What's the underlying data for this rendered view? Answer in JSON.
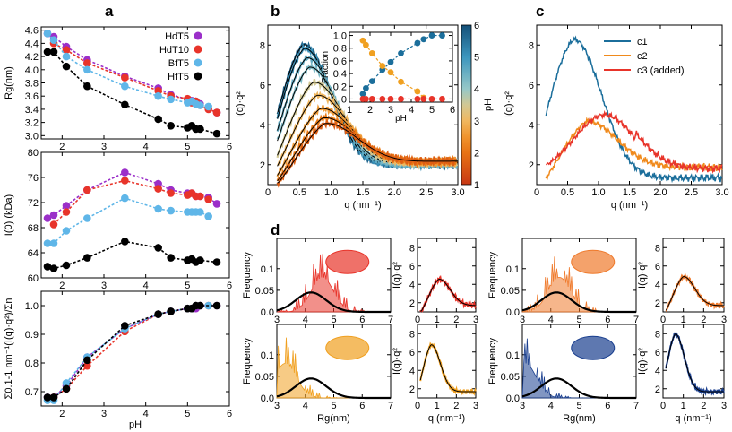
{
  "panel_letters": [
    "a",
    "b",
    "c",
    "d"
  ],
  "chart_data": [
    {
      "id": "a1",
      "type": "scatter",
      "title": "",
      "xlabel": "",
      "ylabel": "Rg(nm)",
      "xlim": [
        1.5,
        6
      ],
      "ylim": [
        2.95,
        4.65
      ],
      "xticks": [
        2,
        3,
        4,
        5,
        6
      ],
      "yticks": [
        3.0,
        3.2,
        3.4,
        3.6,
        3.8,
        4.0,
        4.2,
        4.4,
        4.6
      ],
      "legend": [
        "HdT5",
        "HdT10",
        "BfT5",
        "HfT5"
      ],
      "colors": [
        "#9b2fc9",
        "#e8342a",
        "#5fb6e8",
        "#000000"
      ],
      "series": [
        {
          "name": "HdT5",
          "color": "#9b2fc9",
          "x": [
            1.65,
            1.8,
            2.1,
            2.6,
            3.5,
            4.3,
            4.6,
            5.0,
            5.1,
            5.2,
            5.3,
            5.7
          ],
          "y": [
            4.55,
            4.5,
            4.35,
            4.15,
            3.9,
            3.72,
            3.62,
            3.55,
            3.53,
            3.52,
            3.48,
            3.35
          ]
        },
        {
          "name": "HdT10",
          "color": "#e8342a",
          "x": [
            1.8,
            2.1,
            2.6,
            3.5,
            4.3,
            4.6,
            5.0,
            5.1,
            5.2,
            5.3,
            5.5,
            5.7
          ],
          "y": [
            4.4,
            4.3,
            4.1,
            3.88,
            3.68,
            3.6,
            3.56,
            3.5,
            3.52,
            3.46,
            3.4,
            3.35
          ]
        },
        {
          "name": "BfT5",
          "color": "#5fb6e8",
          "x": [
            1.65,
            1.8,
            2.1,
            2.6,
            3.5,
            4.3,
            4.6,
            5.0,
            5.1,
            5.2,
            5.3,
            5.5
          ],
          "y": [
            4.55,
            4.45,
            4.2,
            4.0,
            3.75,
            3.6,
            3.55,
            3.5,
            3.52,
            3.48,
            3.46,
            3.44
          ]
        },
        {
          "name": "HfT5",
          "color": "#000000",
          "x": [
            1.65,
            1.8,
            2.1,
            2.6,
            3.5,
            4.3,
            4.6,
            5.0,
            5.1,
            5.2,
            5.3,
            5.7
          ],
          "y": [
            4.27,
            4.27,
            4.05,
            3.75,
            3.47,
            3.25,
            3.15,
            3.12,
            3.15,
            3.1,
            3.1,
            3.03
          ]
        }
      ]
    },
    {
      "id": "a2",
      "type": "scatter",
      "title": "",
      "xlabel": "",
      "ylabel": "I(0) (kDa)",
      "xlim": [
        1.5,
        6
      ],
      "ylim": [
        60,
        80
      ],
      "xticks": [
        2,
        3,
        4,
        5,
        6
      ],
      "yticks": [
        60,
        64,
        68,
        72,
        76,
        80
      ],
      "series": [
        {
          "name": "HdT5",
          "color": "#9b2fc9",
          "x": [
            1.65,
            1.8,
            2.1,
            2.6,
            3.5,
            4.3,
            4.6,
            5.0,
            5.1,
            5.2,
            5.3,
            5.5,
            5.7
          ],
          "y": [
            69.5,
            70.0,
            71.5,
            74.0,
            76.8,
            75.0,
            74.0,
            73.5,
            73.5,
            73.0,
            73.0,
            72.8,
            71.8
          ]
        },
        {
          "name": "HdT10",
          "color": "#e8342a",
          "x": [
            1.8,
            2.1,
            2.6,
            3.5,
            4.3,
            4.6,
            5.0,
            5.1,
            5.2,
            5.3,
            5.5
          ],
          "y": [
            68.5,
            70.5,
            74.0,
            75.5,
            74.2,
            73.5,
            73.2,
            73.5,
            73.0,
            73.0,
            72.5
          ]
        },
        {
          "name": "BfT5",
          "color": "#5fb6e8",
          "x": [
            1.65,
            1.8,
            2.1,
            2.6,
            3.5,
            4.3,
            4.6,
            5.0,
            5.1,
            5.2,
            5.3,
            5.5
          ],
          "y": [
            65.5,
            65.5,
            67.5,
            69.5,
            72.7,
            71.0,
            70.7,
            70.5,
            70.5,
            70.5,
            70.5,
            69.8
          ]
        },
        {
          "name": "HfT5",
          "color": "#000000",
          "x": [
            1.65,
            1.8,
            2.1,
            2.6,
            3.5,
            4.3,
            4.6,
            5.0,
            5.1,
            5.2,
            5.3,
            5.7
          ],
          "y": [
            61.8,
            61.5,
            62.0,
            63.2,
            65.8,
            64.8,
            63.2,
            62.8,
            63.0,
            62.5,
            62.8,
            62.5
          ]
        }
      ]
    },
    {
      "id": "a3",
      "type": "scatter",
      "title": "",
      "xlabel": "pH",
      "ylabel": "Σ0.1-1 nm⁻¹(I(q)·q²)/Σn",
      "xlim": [
        1.5,
        6
      ],
      "ylim": [
        0.65,
        1.05
      ],
      "xticks": [
        2,
        3,
        4,
        5,
        6
      ],
      "yticks": [
        0.7,
        0.8,
        0.9,
        1.0
      ],
      "series": [
        {
          "name": "HdT5",
          "color": "#9b2fc9",
          "x": [
            1.65,
            1.8,
            2.1,
            2.6,
            3.5,
            4.3,
            4.6,
            5.0,
            5.1,
            5.2,
            5.3,
            5.7
          ],
          "y": [
            0.68,
            0.68,
            0.72,
            0.82,
            0.92,
            0.97,
            0.98,
            0.99,
            0.99,
            0.99,
            1.0,
            1.0
          ]
        },
        {
          "name": "HdT10",
          "color": "#e8342a",
          "x": [
            1.8,
            2.1,
            2.6,
            3.5,
            4.3,
            4.6,
            5.0,
            5.1,
            5.2,
            5.3,
            5.5
          ],
          "y": [
            0.68,
            0.71,
            0.79,
            0.91,
            0.97,
            0.98,
            0.99,
            0.99,
            1.0,
            1.0,
            1.0
          ]
        },
        {
          "name": "BfT5",
          "color": "#5fb6e8",
          "x": [
            1.65,
            1.8,
            2.1,
            2.6,
            3.5,
            4.3,
            4.6,
            5.0,
            5.1,
            5.2,
            5.3,
            5.5
          ],
          "y": [
            0.67,
            0.67,
            0.73,
            0.82,
            0.92,
            0.97,
            0.98,
            0.99,
            0.99,
            1.0,
            1.0,
            1.0
          ]
        },
        {
          "name": "HfT5",
          "color": "#000000",
          "x": [
            1.65,
            1.8,
            2.1,
            2.6,
            3.5,
            4.3,
            4.6,
            5.0,
            5.1,
            5.2,
            5.3,
            5.7
          ],
          "y": [
            0.68,
            0.68,
            0.71,
            0.81,
            0.93,
            0.97,
            0.98,
            0.99,
            0.99,
            1.0,
            1.0,
            1.0
          ]
        }
      ]
    },
    {
      "id": "b",
      "type": "line",
      "title": "",
      "xlabel": "q (nm⁻¹)",
      "ylabel": "I(q)·q²",
      "xlim": [
        0,
        3.0
      ],
      "ylim": [
        1,
        9
      ],
      "xticks": [
        0,
        0.5,
        1.0,
        1.5,
        2.0,
        2.5,
        3.0
      ],
      "xticklabels": [
        "0",
        "0.5",
        "1.0",
        "1.5",
        "2.0",
        "2.5",
        "3.0"
      ],
      "yticks": [
        2,
        4,
        6,
        8
      ],
      "colorbar": {
        "label": "pH",
        "min": 1,
        "max": 6,
        "ticks": [
          1,
          2,
          3,
          4,
          5,
          6
        ]
      },
      "curves_peak_heights": [
        8.0,
        7.8,
        7.3,
        6.8,
        6.0,
        5.3,
        4.6,
        4.1,
        3.8
      ],
      "curves_ph": [
        5.7,
        5.1,
        4.6,
        4.3,
        3.5,
        3.0,
        2.6,
        2.1,
        1.65
      ],
      "inset": {
        "type": "scatter",
        "xlabel": "pH",
        "ylabel": "Fraction",
        "xlim": [
          1,
          6
        ],
        "ylim": [
          -0.05,
          1.05
        ],
        "xticks": [
          1,
          2,
          3,
          4,
          5,
          6
        ],
        "yticks": [
          0,
          0.2,
          0.4,
          0.6,
          0.8,
          1.0
        ],
        "xticklabels": [
          "1",
          "2",
          "3",
          "4",
          "5",
          "6"
        ],
        "yticklabels": [
          "0",
          "0.2",
          "0.4",
          "0.6",
          "0.8",
          "1.0"
        ],
        "series": [
          {
            "name": "blue",
            "color": "#1b6e9b",
            "x": [
              1.65,
              1.8,
              2.1,
              2.6,
              3.0,
              3.5,
              4.3,
              4.6,
              5.0,
              5.5
            ],
            "y": [
              0.08,
              0.17,
              0.28,
              0.46,
              0.58,
              0.72,
              0.88,
              0.94,
              1.0,
              1.0
            ]
          },
          {
            "name": "orange",
            "color": "#f0a020",
            "x": [
              1.65,
              1.8,
              2.1,
              2.6,
              3.0,
              3.5,
              4.3,
              4.6
            ],
            "y": [
              0.92,
              0.85,
              0.72,
              0.52,
              0.42,
              0.27,
              0.12,
              0.02
            ]
          },
          {
            "name": "red",
            "color": "#e8342a",
            "x": [
              1.65,
              1.8,
              2.1,
              2.6,
              3.0,
              3.5,
              4.3,
              4.6,
              5.0,
              5.5
            ],
            "y": [
              0.0,
              0.0,
              0.0,
              0.0,
              0.0,
              0.0,
              0.0,
              0.0,
              0.0,
              0.0
            ]
          }
        ]
      }
    },
    {
      "id": "c",
      "type": "line",
      "title": "",
      "xlabel": "q (nm⁻¹)",
      "ylabel": "I(q)·q²",
      "xlim": [
        0,
        3.0
      ],
      "ylim": [
        1,
        9
      ],
      "xticks": [
        0,
        0.5,
        1.0,
        1.5,
        2.0,
        2.5,
        3.0
      ],
      "xticklabels": [
        "0",
        "0.5",
        "1.0",
        "1.5",
        "2.0",
        "2.5",
        "3.0"
      ],
      "yticks": [
        2,
        4,
        6,
        8
      ],
      "legend": [
        "c1",
        "c2",
        "c3 (added)"
      ],
      "series": [
        {
          "name": "c1",
          "color": "#1b6e9b",
          "peak_q": 0.6,
          "peak": 8.4
        },
        {
          "name": "c2",
          "color": "#f08a1c",
          "peak_q": 0.8,
          "peak": 4.7
        },
        {
          "name": "c3 (added)",
          "color": "#e8342a",
          "peak_q": 1.1,
          "peak": 4.5
        }
      ]
    },
    {
      "id": "d",
      "type": "bar",
      "xlabel": "Rg(nm)",
      "ylabel": "Frequency",
      "hist_xlim": [
        3,
        7
      ],
      "hist_ylim": [
        0,
        0.17
      ],
      "hist_xticks": [
        3,
        4,
        5,
        6,
        7
      ],
      "hist_yticks": [
        0,
        0.05,
        0.1
      ],
      "hist_ytickl": [
        "0.0",
        "0.05",
        "0.1"
      ],
      "profile_xlabel": "q (nm⁻¹)",
      "profile_ylabel": "I(q)·q²",
      "profile_xticks": [
        0,
        1,
        2,
        3
      ],
      "profile_yticks": [
        2,
        4,
        6,
        8
      ],
      "subpanels": [
        {
          "color": "#e8342a",
          "prior_peak": 4.2,
          "reweighted_peak": 4.6,
          "profile_peak_q": 1.1,
          "profile_peak": 4.5
        },
        {
          "color": "#f0a020",
          "prior_peak": 4.2,
          "reweighted_peak": 3.3,
          "profile_peak_q": 0.7,
          "profile_peak": 6.8
        },
        {
          "color": "#ef7a2c",
          "prior_peak": 4.2,
          "reweighted_peak": 4.3,
          "profile_peak_q": 1.0,
          "profile_peak": 4.8
        },
        {
          "color": "#1a3f8f",
          "prior_peak": 4.2,
          "reweighted_peak": 3.1,
          "profile_peak_q": 0.6,
          "profile_peak": 8.0
        }
      ]
    }
  ]
}
